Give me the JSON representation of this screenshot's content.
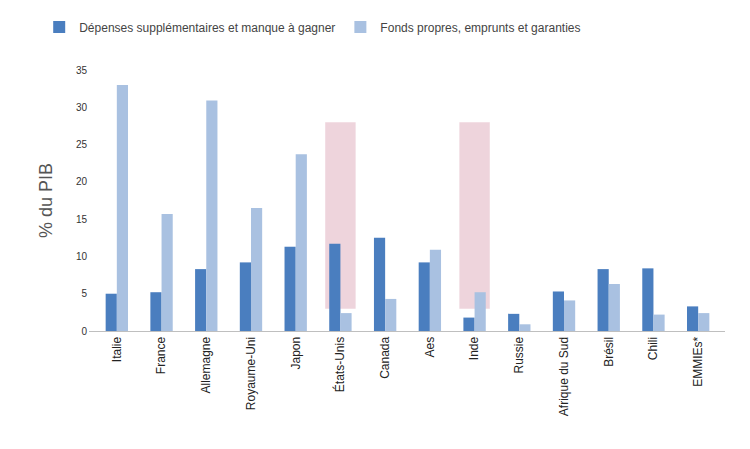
{
  "chart_data": {
    "type": "bar",
    "y_label": "% du PIB",
    "categories": [
      "Italie",
      "France",
      "Allemagne",
      "Royaume-Uni",
      "Japon",
      "États-Unis",
      "Canada",
      "Aes",
      "Inde",
      "Russie",
      "Afrique du Sud",
      "Brésil",
      "Chili",
      "EMMIEs*"
    ],
    "series": [
      {
        "name": "Dépenses supplémentaires et manque à gagner",
        "color": "#4a7ebf",
        "values": [
          5.0,
          5.2,
          8.3,
          9.2,
          11.3,
          11.7,
          12.5,
          9.2,
          1.8,
          2.3,
          5.3,
          8.3,
          8.4,
          3.3
        ]
      },
      {
        "name": "Fonds propres, emprunts et garanties",
        "color": "#a9c1e1",
        "values": [
          33.0,
          15.7,
          30.9,
          16.5,
          23.7,
          2.4,
          4.3,
          10.9,
          5.2,
          0.9,
          4.1,
          6.3,
          2.2,
          2.4
        ]
      }
    ],
    "highlights": [
      {
        "category": "États-Unis",
        "from": 3,
        "to": 28
      },
      {
        "category": "Inde",
        "from": 3,
        "to": 28
      }
    ],
    "ylim": [
      0,
      35
    ],
    "yticks": [
      0,
      5,
      10,
      15,
      20,
      25,
      30,
      35
    ],
    "grid": false,
    "legend": "top"
  }
}
